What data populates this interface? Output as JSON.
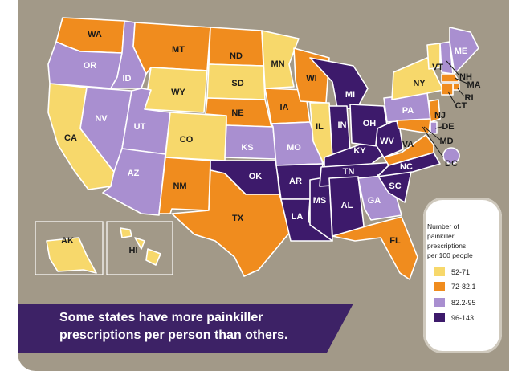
{
  "caption": {
    "line1": "Some states have more painkiller",
    "line2": "prescriptions per person than others."
  },
  "legend": {
    "title": [
      "Number of",
      "painkiller",
      "prescriptions",
      "per 100 people"
    ],
    "ranges": [
      {
        "label": "52-71",
        "color": "#f7d86b"
      },
      {
        "label": "72-82.1",
        "color": "#f08c1e"
      },
      {
        "label": "82.2-95",
        "color": "#a98fd0"
      },
      {
        "label": "96-143",
        "color": "#3d1a6b"
      }
    ]
  },
  "states": [
    {
      "abbr": "WA",
      "bin": 1
    },
    {
      "abbr": "OR",
      "bin": 2
    },
    {
      "abbr": "CA",
      "bin": 0
    },
    {
      "abbr": "ID",
      "bin": 2
    },
    {
      "abbr": "NV",
      "bin": 2
    },
    {
      "abbr": "MT",
      "bin": 1
    },
    {
      "abbr": "WY",
      "bin": 0
    },
    {
      "abbr": "UT",
      "bin": 2
    },
    {
      "abbr": "AZ",
      "bin": 2
    },
    {
      "abbr": "CO",
      "bin": 0
    },
    {
      "abbr": "NM",
      "bin": 1
    },
    {
      "abbr": "ND",
      "bin": 1
    },
    {
      "abbr": "SD",
      "bin": 0
    },
    {
      "abbr": "NE",
      "bin": 1
    },
    {
      "abbr": "KS",
      "bin": 2
    },
    {
      "abbr": "OK",
      "bin": 3
    },
    {
      "abbr": "TX",
      "bin": 1
    },
    {
      "abbr": "MN",
      "bin": 0
    },
    {
      "abbr": "IA",
      "bin": 1
    },
    {
      "abbr": "MO",
      "bin": 2
    },
    {
      "abbr": "AR",
      "bin": 3
    },
    {
      "abbr": "LA",
      "bin": 3
    },
    {
      "abbr": "WI",
      "bin": 1
    },
    {
      "abbr": "IL",
      "bin": 0
    },
    {
      "abbr": "MS",
      "bin": 3
    },
    {
      "abbr": "MI",
      "bin": 3
    },
    {
      "abbr": "IN",
      "bin": 3
    },
    {
      "abbr": "KY",
      "bin": 3
    },
    {
      "abbr": "TN",
      "bin": 3
    },
    {
      "abbr": "AL",
      "bin": 3
    },
    {
      "abbr": "OH",
      "bin": 3
    },
    {
      "abbr": "WV",
      "bin": 3
    },
    {
      "abbr": "GA",
      "bin": 2
    },
    {
      "abbr": "FL",
      "bin": 1
    },
    {
      "abbr": "SC",
      "bin": 3
    },
    {
      "abbr": "NC",
      "bin": 3
    },
    {
      "abbr": "VA",
      "bin": 1
    },
    {
      "abbr": "PA",
      "bin": 2
    },
    {
      "abbr": "NY",
      "bin": 0
    },
    {
      "abbr": "VT",
      "bin": 0
    },
    {
      "abbr": "NH",
      "bin": 2
    },
    {
      "abbr": "ME",
      "bin": 2
    },
    {
      "abbr": "MA",
      "bin": 1
    },
    {
      "abbr": "RI",
      "bin": 1
    },
    {
      "abbr": "CT",
      "bin": 1
    },
    {
      "abbr": "NJ",
      "bin": 1
    },
    {
      "abbr": "DE",
      "bin": 2
    },
    {
      "abbr": "MD",
      "bin": 1
    },
    {
      "abbr": "DC",
      "bin": 2
    },
    {
      "abbr": "AK",
      "bin": 0
    },
    {
      "abbr": "HI",
      "bin": 0
    }
  ]
}
